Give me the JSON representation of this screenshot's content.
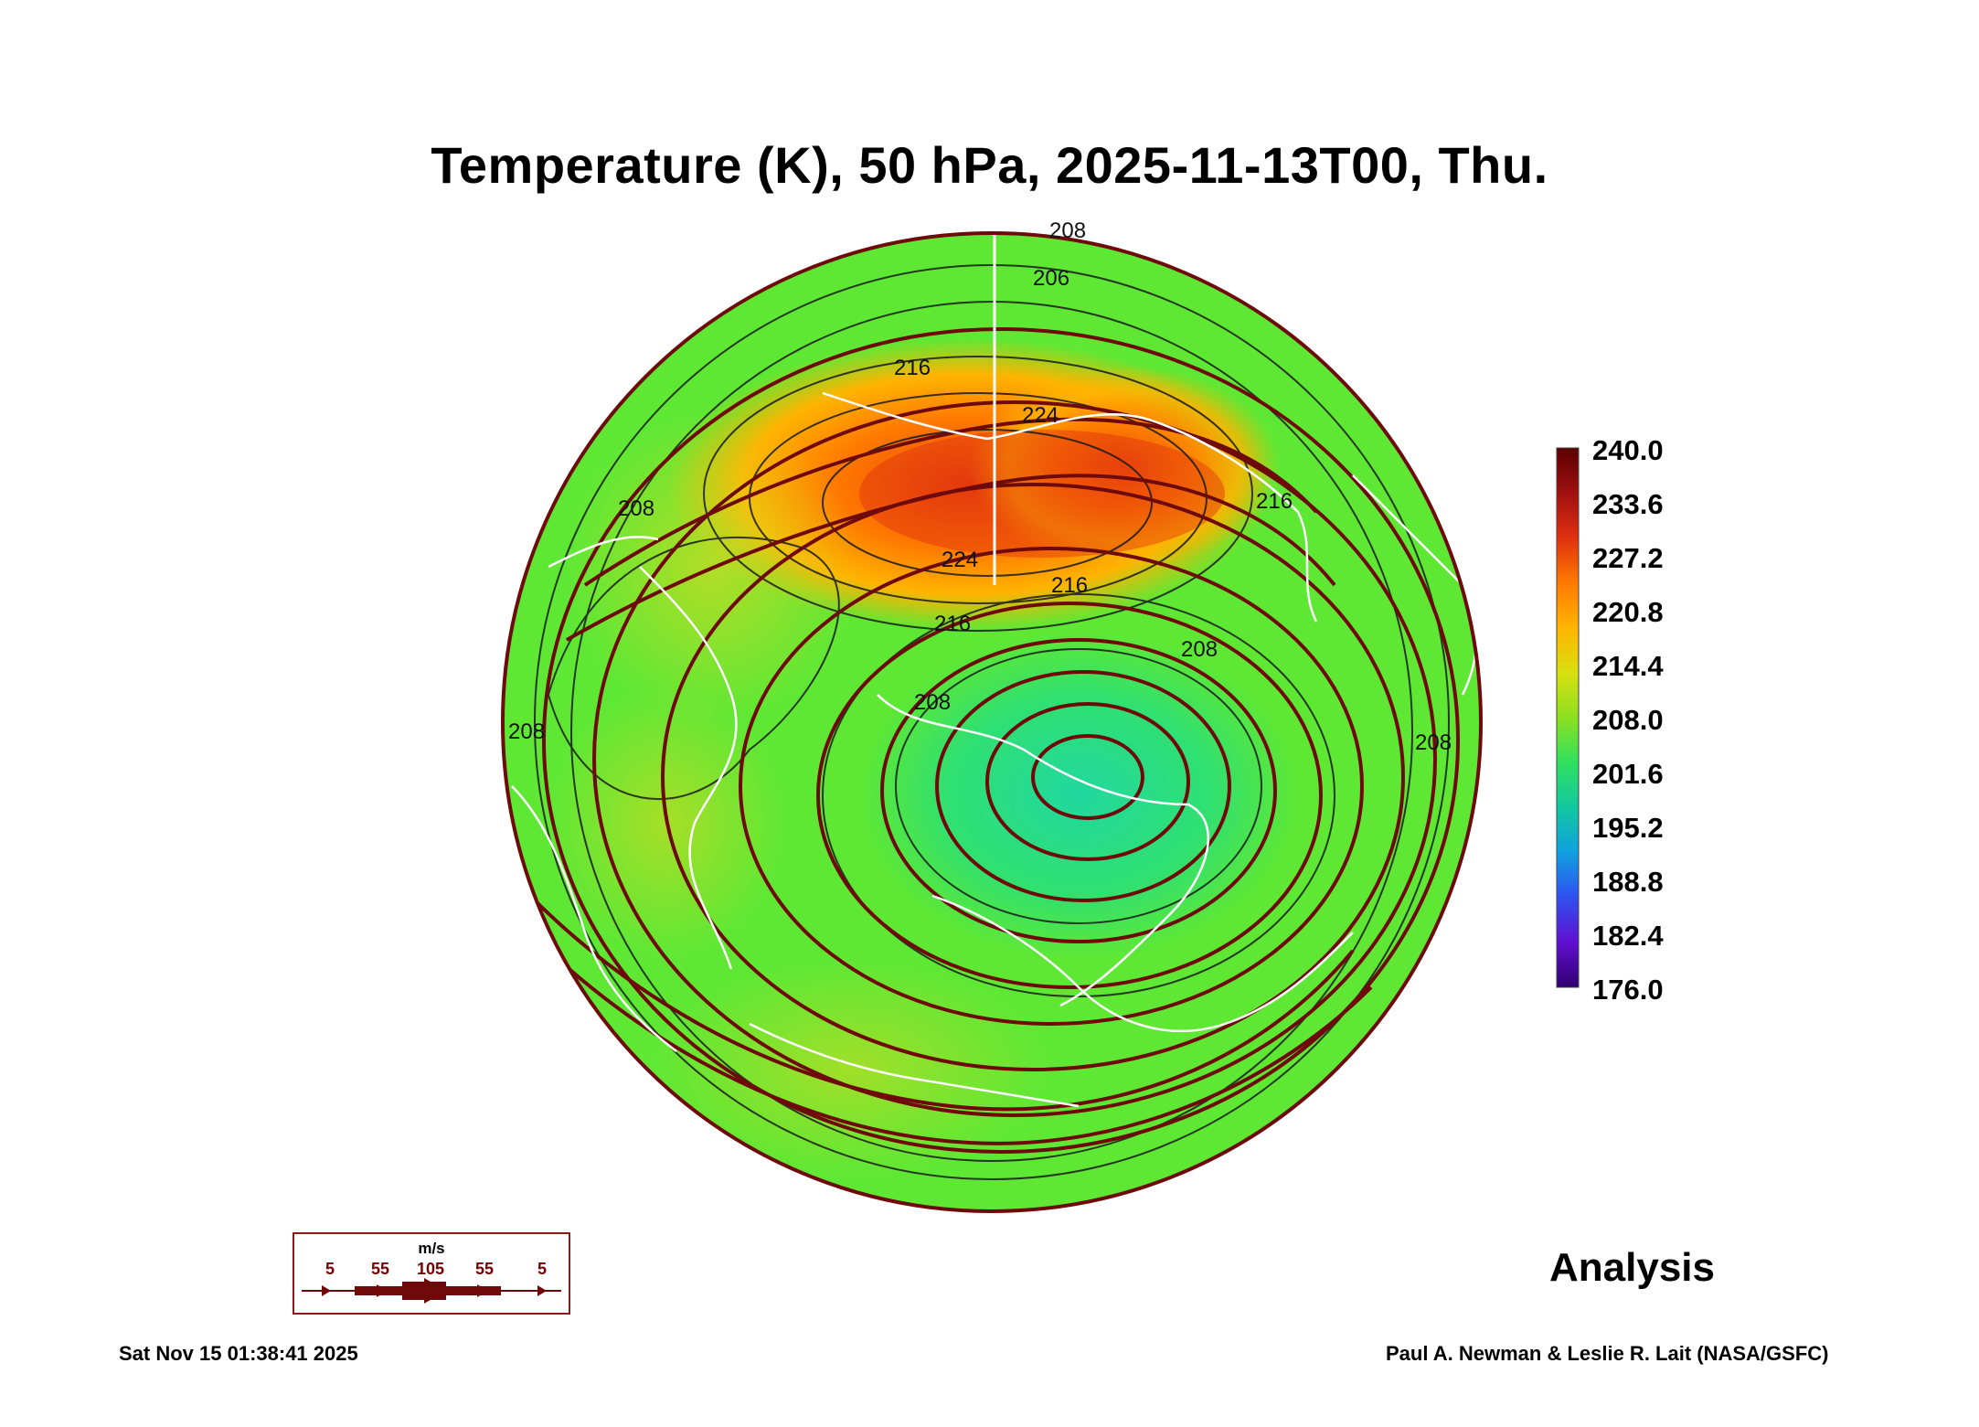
{
  "title": "Temperature (K), 50 hPa, 2025-11-13T00, Thu.",
  "colorbar": {
    "labels": [
      "240.0",
      "233.6",
      "227.2",
      "220.8",
      "214.4",
      "208.0",
      "201.6",
      "195.2",
      "188.8",
      "182.4",
      "176.0"
    ],
    "stops": [
      "#5a0000",
      "#a01010",
      "#e03010",
      "#ff7a00",
      "#ffb400",
      "#d8e010",
      "#8ce020",
      "#30e060",
      "#10c8a0",
      "#10a0e0",
      "#3050f0",
      "#6010d0",
      "#300070"
    ]
  },
  "contour_labels": [
    "208",
    "206",
    "216",
    "224",
    "224",
    "216",
    "216",
    "208",
    "208",
    "208",
    "208",
    "216",
    "208"
  ],
  "vector_legend": {
    "unit": "m/s",
    "labels": [
      "5",
      "55",
      "105",
      "55",
      "5"
    ]
  },
  "analysis_label": "Analysis",
  "timestamp": "Sat Nov 15 01:38:41 2025",
  "credit": "Paul A. Newman & Leslie R. Lait (NASA/GSFC)"
}
